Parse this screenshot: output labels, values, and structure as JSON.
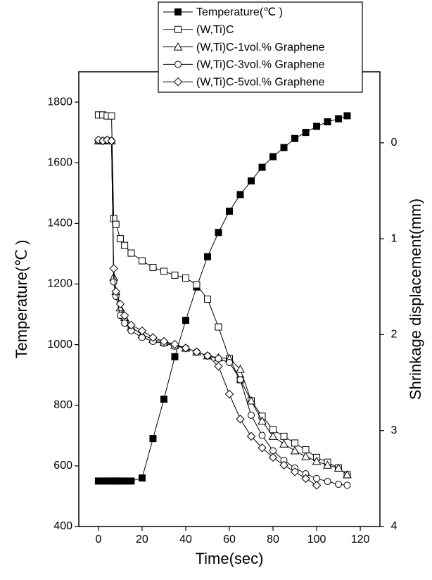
{
  "chart_data": {
    "type": "line",
    "xlabel": "Time(sec)",
    "ylabel": "Temperature(℃ )",
    "y2label": "Shrinkage displacement(mm)",
    "x": [
      0,
      2,
      4,
      6,
      7,
      8,
      10,
      12,
      15,
      20,
      25,
      30,
      35,
      40,
      45,
      50,
      55,
      60,
      65,
      70,
      75,
      80,
      85,
      90,
      95,
      100,
      105,
      110,
      114
    ],
    "series": [
      {
        "name": "Temperature(℃ )",
        "color": "#000000",
        "marker": "square-filled",
        "axis": "y",
        "values": [
          550,
          550,
          550,
          550,
          550,
          550,
          550,
          550,
          550,
          560,
          690,
          820,
          960,
          1080,
          1190,
          1290,
          1370,
          1440,
          1495,
          1540,
          1585,
          1620,
          1650,
          1680,
          1700,
          1720,
          1735,
          1745,
          1755
        ]
      },
      {
        "name": "(W,Ti)C",
        "color": "#000000",
        "marker": "square-open",
        "axis": "y2",
        "values": [
          -0.29,
          -0.29,
          -0.28,
          -0.28,
          0.79,
          0.85,
          1.0,
          1.07,
          1.15,
          1.23,
          1.3,
          1.34,
          1.38,
          1.41,
          1.48,
          1.63,
          1.92,
          2.25,
          2.47,
          2.69,
          2.85,
          2.99,
          3.06,
          3.13,
          3.2,
          3.28,
          3.33,
          3.39,
          3.46
        ]
      },
      {
        "name": "(W,Ti)C-1vol.% Graphene",
        "color": "#000000",
        "marker": "triangle",
        "axis": "y2",
        "values": [
          -0.02,
          -0.02,
          -0.03,
          -0.02,
          1.4,
          1.55,
          1.72,
          1.82,
          1.92,
          2.0,
          2.05,
          2.08,
          2.11,
          2.14,
          2.18,
          2.22,
          2.24,
          2.25,
          2.36,
          2.69,
          2.9,
          3.06,
          3.14,
          3.21,
          3.27,
          3.32,
          3.36,
          3.39,
          3.46
        ]
      },
      {
        "name": "(W,Ti)C-3vol.% Graphene",
        "color": "#000000",
        "marker": "circle",
        "axis": "y2",
        "values": [
          -0.02,
          -0.02,
          -0.03,
          -0.02,
          1.45,
          1.6,
          1.8,
          1.88,
          1.96,
          2.03,
          2.07,
          2.09,
          2.12,
          2.14,
          2.18,
          2.22,
          2.25,
          2.29,
          2.47,
          2.84,
          3.05,
          3.21,
          3.31,
          3.39,
          3.45,
          3.5,
          3.53,
          3.56,
          3.57
        ]
      },
      {
        "name": "(W,Ti)C-5vol.% Graphene",
        "color": "#000000",
        "marker": "diamond",
        "axis": "y2",
        "values": [
          -0.03,
          -0.02,
          -0.03,
          -0.02,
          1.31,
          1.55,
          1.68,
          1.8,
          1.9,
          1.96,
          2.03,
          2.07,
          2.1,
          2.14,
          2.18,
          2.22,
          2.33,
          2.62,
          2.88,
          3.06,
          3.18,
          3.28,
          3.36,
          3.43,
          3.5,
          3.57,
          null,
          null,
          null
        ]
      }
    ],
    "xlim": [
      -9,
      129
    ],
    "xticks": [
      0,
      20,
      40,
      60,
      80,
      100,
      120
    ],
    "ylim": [
      400,
      1900
    ],
    "yticks": [
      400,
      600,
      800,
      1000,
      1200,
      1400,
      1600,
      1800
    ],
    "y2lim": [
      4,
      -0.74
    ],
    "y2ticks": [
      0,
      1,
      2,
      3,
      4
    ]
  }
}
